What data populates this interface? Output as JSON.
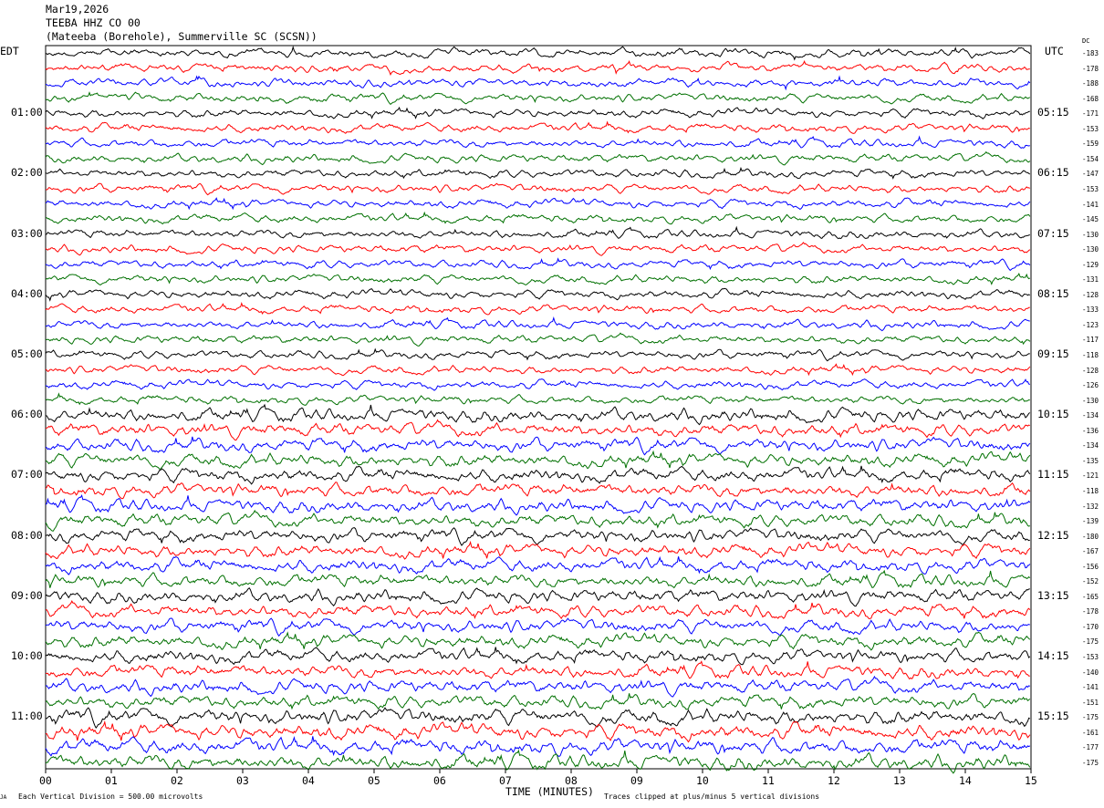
{
  "header": {
    "date": "Mar19,2026",
    "station": "TEEBA HHZ CO 00",
    "location": "(Mateeba (Borehole), Summerville SC (SCSN))"
  },
  "left_timezone": "EDT",
  "right_timezone": "UTC",
  "dc_label": "DC",
  "footer": {
    "scale": "Each Vertical Division =  500.00 microvolts",
    "clip": "Traces clipped at plus/minus 5 vertical divisions",
    "corner_mark": "JA"
  },
  "chart_data": {
    "type": "line",
    "xlabel": "TIME (MINUTES)",
    "xlim": [
      0,
      15
    ],
    "x_ticks": [
      "00",
      "01",
      "02",
      "03",
      "04",
      "05",
      "06",
      "07",
      "08",
      "09",
      "10",
      "11",
      "12",
      "13",
      "14",
      "15"
    ],
    "left_hour_labels": [
      "01:00",
      "02:00",
      "03:00",
      "04:00",
      "05:00",
      "06:00",
      "07:00",
      "08:00",
      "09:00",
      "10:00",
      "11:00"
    ],
    "right_hour_labels": [
      "05:15",
      "06:15",
      "07:15",
      "08:15",
      "09:15",
      "10:15",
      "11:15",
      "12:15",
      "13:15",
      "14:15",
      "15:15"
    ],
    "trace_colors": [
      "#000000",
      "#ff0000",
      "#0000ff",
      "#007000"
    ],
    "trace_count": 48,
    "dc_offsets": [
      -183,
      -178,
      -188,
      -168,
      -171,
      -153,
      -159,
      -154,
      -147,
      -153,
      -141,
      -145,
      -130,
      -130,
      -129,
      -131,
      -128,
      -133,
      -123,
      -117,
      -118,
      -128,
      -126,
      -130,
      -134,
      -136,
      -134,
      -135,
      -121,
      -118,
      -132,
      -139,
      -180,
      -167,
      -156,
      -152,
      -165,
      -178,
      -170,
      -175,
      -153,
      -140,
      -141,
      -151,
      -175,
      -161,
      -177,
      -175
    ]
  }
}
